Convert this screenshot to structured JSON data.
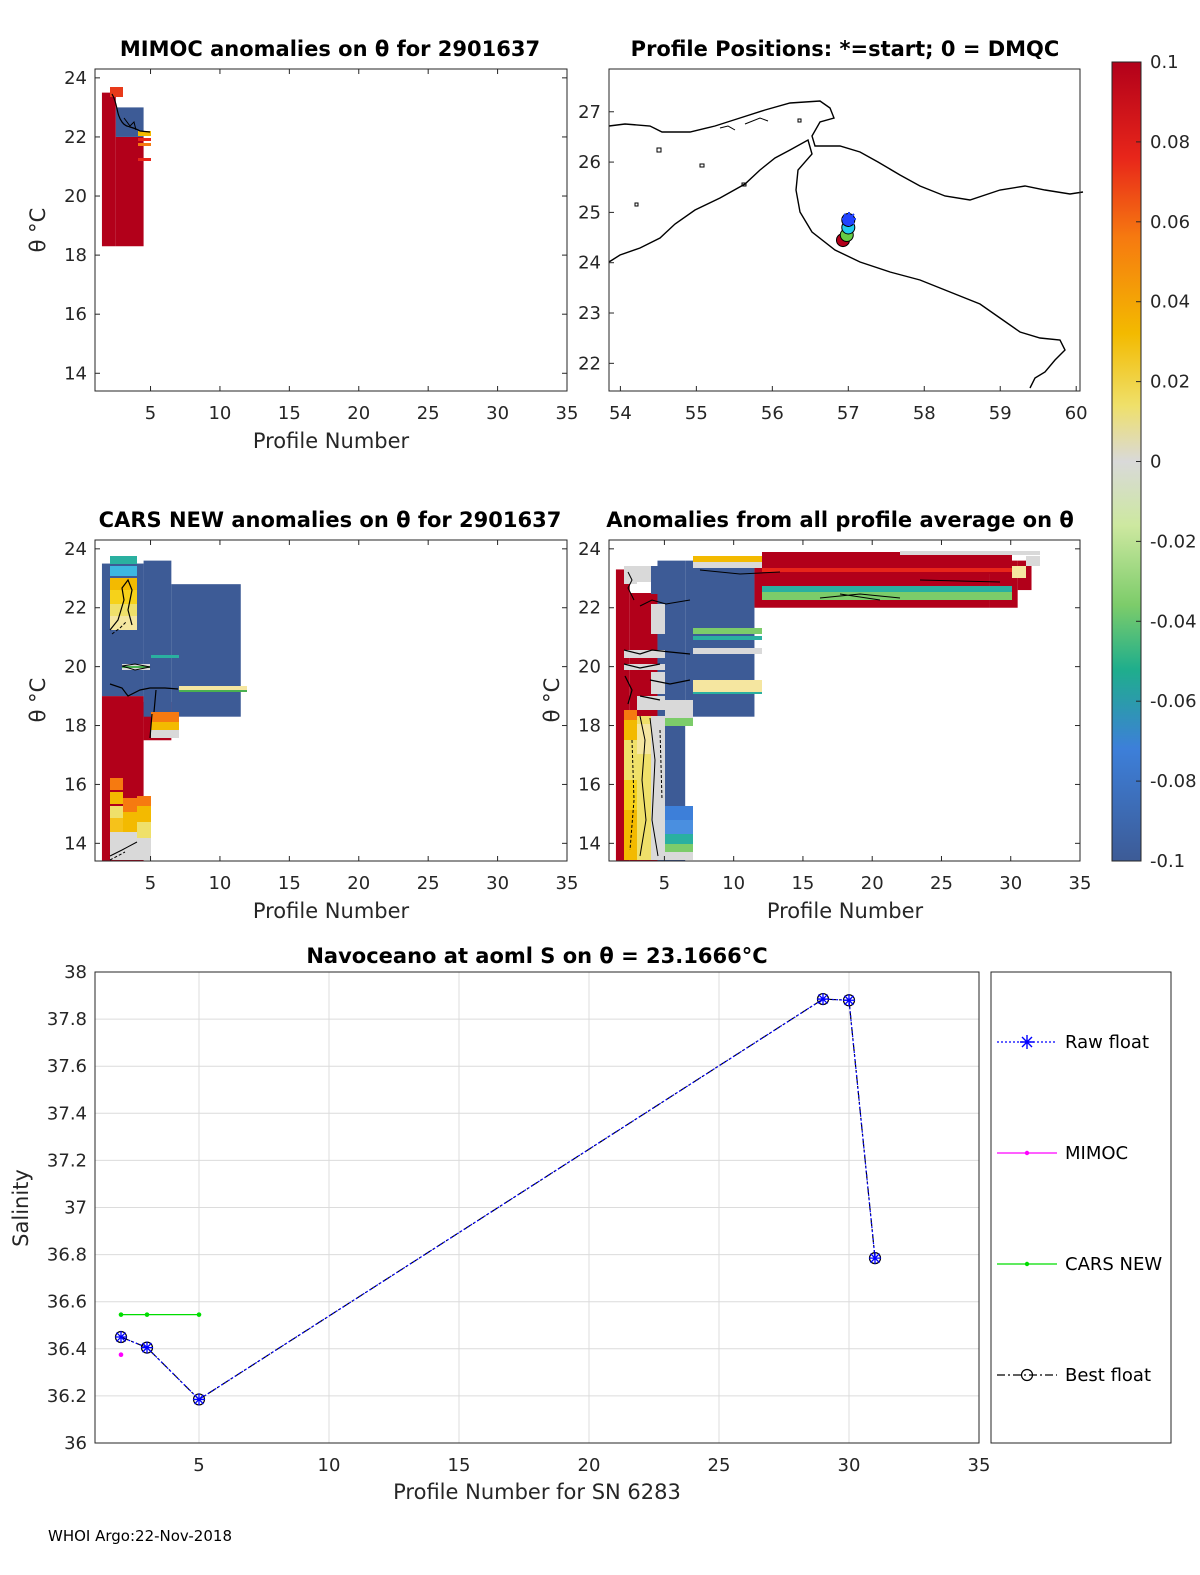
{
  "colors": {
    "red": "#b2001a",
    "blue": "#3d5b96",
    "gray": "#d9d9d9",
    "raw": "#0000ff",
    "mimoc": "#ff00ff",
    "cars": "#00dd00",
    "best": "#000000"
  },
  "footer": "WHOI Argo:22-Nov-2018",
  "chart_data": [
    {
      "id": "mimoc",
      "type": "heatmap",
      "title": "MIMOC anomalies on θ  for 2901637",
      "xlabel": "Profile Number",
      "ylabel": "θ °C",
      "xlim": [
        1,
        35
      ],
      "ylim": [
        13.4,
        24.3
      ],
      "xticks": [
        5,
        10,
        15,
        20,
        25,
        30,
        35
      ],
      "yticks": [
        14,
        16,
        18,
        20,
        22,
        24
      ],
      "columns": [
        {
          "x0": 2,
          "x1": 3,
          "ylow": 18.3,
          "yhigh": 23.5,
          "value": "red"
        },
        {
          "x0": 3,
          "x1": 5,
          "ylow": 18.3,
          "yhigh": 22.0,
          "value": "red"
        },
        {
          "x0": 3,
          "x1": 5,
          "ylow": 22.0,
          "yhigh": 23.0,
          "value": "blue"
        }
      ]
    },
    {
      "id": "map",
      "type": "scatter",
      "title": "Profile Positions: *=start; 0 = DMQC",
      "xlim": [
        53.85,
        60.05
      ],
      "ylim": [
        21.45,
        27.85
      ],
      "xticks": [
        54,
        55,
        56,
        57,
        58,
        59,
        60
      ],
      "yticks": [
        22,
        23,
        24,
        25,
        26,
        27
      ],
      "points": [
        {
          "lon": 56.93,
          "lat": 24.45,
          "color": "#b2001a"
        },
        {
          "lon": 56.98,
          "lat": 24.55,
          "color": "#66cc44"
        },
        {
          "lon": 57.0,
          "lat": 24.7,
          "color": "#22ccee"
        },
        {
          "lon": 57.0,
          "lat": 24.85,
          "color": "#2244ff"
        }
      ]
    },
    {
      "id": "cars",
      "type": "heatmap",
      "title": "CARS NEW anomalies on θ for 2901637",
      "xlabel": "Profile Number",
      "ylabel": "θ °C",
      "xlim": [
        1,
        35
      ],
      "ylim": [
        13.4,
        24.3
      ],
      "xticks": [
        5,
        10,
        15,
        20,
        25,
        30,
        35
      ],
      "yticks": [
        14,
        16,
        18,
        20,
        22,
        24
      ],
      "columns": [
        {
          "x0": 2,
          "x1": 5,
          "ylow": 13.4,
          "yhigh": 19.0,
          "value": "red"
        },
        {
          "x0": 2,
          "x1": 5,
          "ylow": 19.0,
          "yhigh": 23.5,
          "value": "blue"
        },
        {
          "x0": 5,
          "x1": 7,
          "ylow": 17.5,
          "yhigh": 18.8,
          "value": "red"
        },
        {
          "x0": 5,
          "x1": 7,
          "ylow": 18.3,
          "yhigh": 23.6,
          "value": "blue"
        },
        {
          "x0": 7,
          "x1": 12,
          "ylow": 18.3,
          "yhigh": 22.8,
          "value": "blue"
        }
      ]
    },
    {
      "id": "avg",
      "type": "heatmap",
      "title": "Anomalies from all profile average on θ",
      "xlabel": "Profile Number",
      "ylabel": "θ °C",
      "xlim": [
        1,
        35
      ],
      "ylim": [
        13.4,
        24.3
      ],
      "xticks": [
        5,
        10,
        15,
        20,
        25,
        30,
        35
      ],
      "yticks": [
        14,
        16,
        18,
        20,
        22,
        24
      ],
      "columns": [
        {
          "x0": 2,
          "x1": 3,
          "ylow": 13.4,
          "yhigh": 23.3,
          "value": "red"
        },
        {
          "x0": 3,
          "x1": 5,
          "ylow": 13.4,
          "yhigh": 22.5,
          "value": "red"
        },
        {
          "x0": 5,
          "x1": 7,
          "ylow": 13.4,
          "yhigh": 23.6,
          "value": "blue"
        },
        {
          "x0": 7,
          "x1": 12,
          "ylow": 18.3,
          "yhigh": 23.6,
          "value": "blue"
        },
        {
          "x0": 12,
          "x1": 29,
          "ylow": 22.0,
          "yhigh": 23.6,
          "value": "red"
        },
        {
          "x0": 29,
          "x1": 31,
          "ylow": 22.0,
          "yhigh": 23.6,
          "value": "red"
        },
        {
          "x0": 31,
          "x1": 32,
          "ylow": 22.6,
          "yhigh": 23.6,
          "value": "red"
        }
      ]
    },
    {
      "id": "colorbar",
      "type": "heatmap",
      "vmin": -0.1,
      "vmax": 0.1,
      "ticks": [
        "0.1",
        "0.08",
        "0.06",
        "0.04",
        "0.02",
        "0",
        "-0.02",
        "-0.04",
        "-0.06",
        "-0.08",
        "-0.1"
      ]
    },
    {
      "id": "salinity",
      "type": "line",
      "title": "Navoceano at aoml S on θ = 23.1666°C",
      "xlabel": "Profile Number for SN 6283",
      "ylabel": "Salinity",
      "xlim": [
        1,
        35
      ],
      "ylim": [
        36,
        38
      ],
      "xticks": [
        5,
        10,
        15,
        20,
        25,
        30,
        35
      ],
      "yticks": [
        "36",
        "36.2",
        "36.4",
        "36.6",
        "36.8",
        "37",
        "37.2",
        "37.4",
        "37.6",
        "37.8",
        "38"
      ],
      "grid": true,
      "legend_position": "right",
      "series": [
        {
          "name": "Raw float",
          "x": [
            2,
            3,
            5,
            29,
            30,
            31
          ],
          "y": [
            36.45,
            36.405,
            36.185,
            37.885,
            37.88,
            36.785
          ]
        },
        {
          "name": "MIMOC",
          "x": [
            2
          ],
          "y": [
            36.375
          ]
        },
        {
          "name": "CARS NEW",
          "x": [
            2,
            3,
            5
          ],
          "y": [
            36.545,
            36.545,
            36.545
          ]
        },
        {
          "name": "Best float",
          "x": [
            2,
            3,
            5,
            29,
            30,
            31
          ],
          "y": [
            36.45,
            36.405,
            36.185,
            37.885,
            37.88,
            36.785
          ]
        }
      ]
    }
  ]
}
